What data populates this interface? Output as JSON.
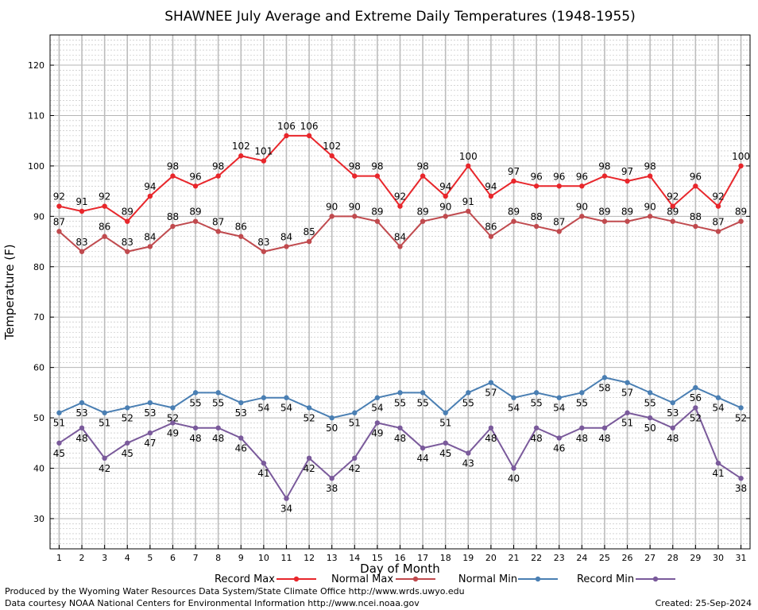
{
  "chart_data": {
    "type": "line",
    "title": "SHAWNEE July Average and Extreme Daily Temperatures (1948-1955)",
    "xlabel": "Day of Month",
    "ylabel": "Temperature (F)",
    "x": [
      1,
      2,
      3,
      4,
      5,
      6,
      7,
      8,
      9,
      10,
      11,
      12,
      13,
      14,
      15,
      16,
      17,
      18,
      19,
      20,
      21,
      22,
      23,
      24,
      25,
      26,
      27,
      28,
      29,
      30,
      31
    ],
    "xlim": [
      0.6,
      31.4
    ],
    "ylim": [
      24,
      126
    ],
    "yticks": [
      30,
      40,
      50,
      60,
      70,
      80,
      90,
      100,
      110,
      120
    ],
    "grid": true,
    "legend_position": "bottom",
    "series": [
      {
        "name": "Record Max",
        "color": "#e8262b",
        "values": [
          92,
          91,
          92,
          89,
          94,
          98,
          96,
          98,
          102,
          101,
          106,
          106,
          102,
          98,
          98,
          92,
          98,
          94,
          100,
          94,
          97,
          96,
          96,
          96,
          98,
          97,
          98,
          92,
          96,
          92,
          100
        ]
      },
      {
        "name": "Normal Max",
        "color": "#c04a4e",
        "values": [
          87,
          83,
          86,
          83,
          84,
          88,
          89,
          87,
          86,
          83,
          84,
          85,
          90,
          90,
          89,
          84,
          89,
          90,
          91,
          86,
          89,
          88,
          87,
          90,
          89,
          89,
          90,
          89,
          88,
          87,
          89
        ]
      },
      {
        "name": "Normal Min",
        "color": "#4a7fb3",
        "values": [
          51,
          53,
          51,
          52,
          53,
          52,
          55,
          55,
          53,
          54,
          54,
          52,
          50,
          51,
          54,
          55,
          55,
          51,
          55,
          57,
          54,
          55,
          54,
          55,
          58,
          57,
          55,
          53,
          56,
          54,
          52
        ]
      },
      {
        "name": "Record Min",
        "color": "#7a5a9b",
        "values": [
          45,
          48,
          42,
          45,
          47,
          49,
          48,
          48,
          46,
          41,
          34,
          42,
          38,
          42,
          49,
          48,
          44,
          45,
          43,
          48,
          40,
          48,
          46,
          48,
          48,
          51,
          50,
          48,
          52,
          41,
          38
        ]
      }
    ]
  },
  "footer": {
    "produced_by": "Produced by the Wyoming Water Resources Data System/State Climate Office http://www.wrds.uwyo.edu",
    "courtesy": "Data courtesy NOAA National Centers for Environmental Information http://www.ncei.noaa.gov",
    "created": "Created:  25-Sep-2024"
  }
}
